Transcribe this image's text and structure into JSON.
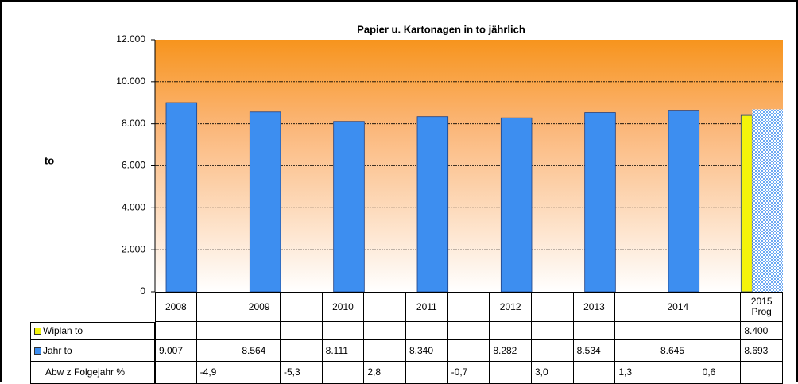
{
  "chart_data": {
    "type": "bar",
    "title": "Papier u. Kartonagen in to jährlich",
    "y_label": "to",
    "categories": [
      "2008",
      null,
      "2009",
      null,
      "2010",
      null,
      "2011",
      null,
      "2012",
      null,
      "2013",
      null,
      "2014",
      null,
      "2015 Prog"
    ],
    "series": [
      {
        "name": "Wiplan to",
        "color": "#f4f40a",
        "values": [
          null,
          null,
          null,
          null,
          null,
          null,
          null,
          null,
          null,
          null,
          null,
          null,
          null,
          null,
          8400
        ],
        "value_labels": [
          null,
          null,
          null,
          null,
          null,
          null,
          null,
          null,
          null,
          null,
          null,
          null,
          null,
          null,
          "8.400"
        ]
      },
      {
        "name": "Jahr to",
        "color": "#3d8ef0",
        "fill_styles": [
          "solid",
          null,
          "solid",
          null,
          "solid",
          null,
          "solid",
          null,
          "solid",
          null,
          "solid",
          null,
          "solid",
          null,
          "dotted"
        ],
        "values": [
          9007,
          null,
          8564,
          null,
          8111,
          null,
          8340,
          null,
          8282,
          null,
          8534,
          null,
          8645,
          null,
          8693
        ],
        "value_labels": [
          "9.007",
          null,
          "8.564",
          null,
          "8.111",
          null,
          "8.340",
          null,
          "8.282",
          null,
          "8.534",
          null,
          "8.645",
          null,
          "8.693"
        ]
      },
      {
        "name": "Abw z Folgejahr %",
        "values": [
          null,
          -4.9,
          null,
          -5.3,
          null,
          2.8,
          null,
          -0.7,
          null,
          3.0,
          null,
          1.3,
          null,
          0.6,
          null
        ],
        "value_labels": [
          null,
          "-4,9",
          null,
          "-5,3",
          null,
          "2,8",
          null,
          "-0,7",
          null,
          "3,0",
          null,
          "1,3",
          null,
          "0,6",
          null
        ]
      }
    ],
    "ylim": [
      0,
      12000
    ],
    "yticks": [
      0,
      {
        "value": 2000,
        "label": "2.000"
      },
      {
        "value": 4000,
        "label": "4.000"
      },
      {
        "value": 6000,
        "label": "6.000"
      },
      {
        "value": 8000,
        "label": "8.000"
      },
      {
        "value": 10000,
        "label": "10.000"
      },
      {
        "value": 12000,
        "label": "12.000"
      }
    ],
    "grid": true
  }
}
